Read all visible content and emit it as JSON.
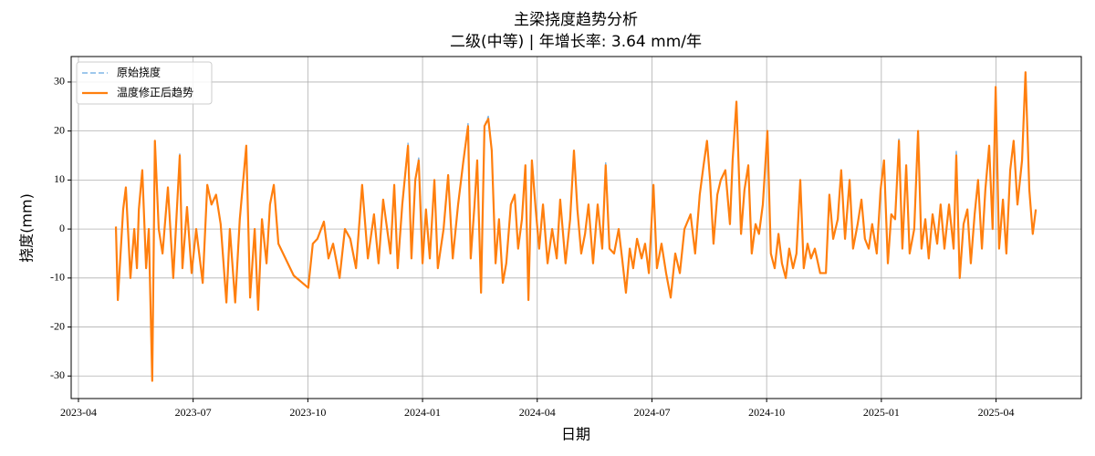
{
  "chart_data": {
    "type": "line",
    "title": "主梁挠度趋势分析",
    "subtitle": "二级(中等) | 年增长率: 3.64 mm/年",
    "xlabel": "日期",
    "ylabel": "挠度(mm)",
    "legend": "upper left",
    "grid": true,
    "xlim": [
      -0.19,
      26.23
    ],
    "xticks": [
      {
        "value": 0,
        "label": "2023-04"
      },
      {
        "value": 3,
        "label": "2023-07"
      },
      {
        "value": 6,
        "label": "2023-10"
      },
      {
        "value": 9,
        "label": "2024-01"
      },
      {
        "value": 12,
        "label": "2024-04"
      },
      {
        "value": 15,
        "label": "2024-07"
      },
      {
        "value": 18,
        "label": "2024-10"
      },
      {
        "value": 21,
        "label": "2025-01"
      },
      {
        "value": 24,
        "label": "2025-04"
      }
    ],
    "ylim": [
      -34.6,
      35.2
    ],
    "yticks": [
      -30,
      -20,
      -10,
      0,
      10,
      20,
      30
    ],
    "x": [
      0.98,
      1.03,
      1.17,
      1.24,
      1.36,
      1.46,
      1.53,
      1.58,
      1.67,
      1.77,
      1.84,
      1.93,
      2.0,
      2.1,
      2.2,
      2.34,
      2.48,
      2.65,
      2.72,
      2.84,
      2.96,
      3.08,
      3.25,
      3.37,
      3.48,
      3.6,
      3.72,
      3.87,
      3.96,
      4.1,
      4.22,
      4.39,
      4.49,
      4.61,
      4.7,
      4.8,
      4.92,
      5.01,
      5.11,
      5.23,
      5.63,
      6.01,
      6.13,
      6.25,
      6.42,
      6.54,
      6.66,
      6.83,
      6.97,
      7.11,
      7.26,
      7.42,
      7.57,
      7.73,
      7.85,
      7.97,
      8.16,
      8.26,
      8.35,
      8.47,
      8.62,
      8.71,
      8.81,
      8.9,
      9.0,
      9.09,
      9.19,
      9.31,
      9.4,
      9.55,
      9.67,
      9.79,
      9.93,
      10.07,
      10.19,
      10.26,
      10.36,
      10.43,
      10.53,
      10.62,
      10.72,
      10.81,
      10.91,
      11.0,
      11.1,
      11.19,
      11.31,
      11.41,
      11.5,
      11.6,
      11.69,
      11.77,
      11.86,
      11.96,
      12.05,
      12.15,
      12.27,
      12.39,
      12.51,
      12.6,
      12.74,
      12.86,
      12.96,
      13.05,
      13.15,
      13.25,
      13.34,
      13.46,
      13.58,
      13.7,
      13.79,
      13.89,
      14.01,
      14.13,
      14.22,
      14.32,
      14.42,
      14.51,
      14.61,
      14.73,
      14.82,
      14.92,
      15.04,
      15.13,
      15.25,
      15.37,
      15.49,
      15.61,
      15.73,
      15.85,
      16.01,
      16.13,
      16.25,
      16.35,
      16.44,
      16.52,
      16.61,
      16.71,
      16.8,
      16.92,
      17.04,
      17.11,
      17.21,
      17.33,
      17.42,
      17.52,
      17.61,
      17.71,
      17.8,
      17.9,
      18.02,
      18.11,
      18.21,
      18.31,
      18.4,
      18.5,
      18.59,
      18.69,
      18.78,
      18.88,
      18.97,
      19.07,
      19.16,
      19.26,
      19.4,
      19.55,
      19.64,
      19.74,
      19.86,
      19.95,
      20.05,
      20.17,
      20.26,
      20.38,
      20.48,
      20.57,
      20.67,
      20.76,
      20.88,
      20.98,
      21.07,
      21.17,
      21.26,
      21.36,
      21.46,
      21.55,
      21.65,
      21.74,
      21.86,
      21.96,
      22.05,
      22.15,
      22.24,
      22.34,
      22.46,
      22.55,
      22.65,
      22.77,
      22.89,
      22.96,
      23.05,
      23.15,
      23.25,
      23.34,
      23.44,
      23.53,
      23.63,
      23.72,
      23.82,
      23.91,
      23.99,
      24.08,
      24.18,
      24.27,
      24.37,
      24.46,
      24.56,
      24.68,
      24.77,
      24.87,
      24.96,
      25.04
    ],
    "series": [
      {
        "name": "原始挠度",
        "color": "#7eb6e6",
        "dashed": true,
        "values": [
          0.5,
          -14.5,
          4,
          8.5,
          -10,
          0,
          -8,
          4,
          12,
          -8,
          0,
          -31,
          18,
          0,
          -5,
          8.5,
          -10,
          15.3,
          -8,
          4.5,
          -9,
          0,
          -11,
          9,
          5,
          7,
          1,
          -15,
          0,
          -15,
          2,
          17,
          -14,
          0,
          -16.5,
          2,
          -7,
          5,
          9,
          -3,
          -9.5,
          -12,
          -3,
          -2,
          1.5,
          -6,
          -3,
          -10,
          0,
          -2,
          -8,
          9,
          -6,
          3,
          -7,
          6,
          -5,
          9,
          -8,
          5,
          17.5,
          -6,
          10,
          14.5,
          -7,
          4,
          -6,
          10,
          -8,
          0,
          11,
          -6,
          5,
          14,
          21.5,
          -6,
          5,
          14,
          -13,
          21,
          23,
          16,
          -7,
          2,
          -11,
          -7,
          5,
          7,
          -4,
          2,
          13,
          -14.5,
          14,
          4,
          -4,
          5,
          -7,
          0,
          -6,
          6,
          -7,
          2,
          16,
          4,
          -5,
          -1,
          5,
          -7,
          5,
          -4,
          13.5,
          -4,
          -5,
          0,
          -6,
          -13,
          -4,
          -8,
          -2,
          -6,
          -3,
          -9,
          9,
          -8,
          -3,
          -9,
          -14,
          -5,
          -9,
          0,
          3,
          -5,
          7,
          13,
          18,
          10,
          -3,
          7,
          10,
          12,
          1,
          14,
          26,
          -1,
          8,
          13,
          -5,
          1,
          -1,
          5,
          20,
          -5,
          -8,
          -1,
          -7,
          -10,
          -4,
          -8,
          -5,
          10,
          -8,
          -3,
          -6,
          -4,
          -9,
          -9,
          7,
          -2,
          2,
          12,
          -2,
          10,
          -4,
          1,
          6,
          -2,
          -4,
          1,
          -5,
          8,
          14,
          -7,
          3,
          2,
          18.5,
          -4,
          13,
          -5,
          0,
          20,
          -4,
          2,
          -6,
          3,
          -3,
          5,
          -4,
          5,
          -4,
          16,
          -10,
          1,
          4,
          -7,
          3,
          10,
          -4,
          8,
          17,
          0,
          29,
          -4,
          6,
          -5,
          12,
          18,
          5,
          14,
          32,
          8,
          -1,
          4
        ]
      },
      {
        "name": "温度修正后趋势",
        "color": "#ff7f0e",
        "dashed": false,
        "values": [
          0.5,
          -14.5,
          4,
          8.5,
          -10,
          0,
          -8,
          4,
          12,
          -8,
          0,
          -31,
          18,
          0,
          -5,
          8.5,
          -10,
          15,
          -8,
          4.5,
          -9,
          0,
          -11,
          9,
          5,
          7,
          1,
          -15,
          0,
          -15,
          2,
          17,
          -14,
          0,
          -16.5,
          2,
          -7,
          5,
          9,
          -3,
          -9.5,
          -12,
          -3,
          -2,
          1.5,
          -6,
          -3,
          -10,
          0,
          -2,
          -8,
          9,
          -6,
          3,
          -7,
          6,
          -5,
          9,
          -8,
          5,
          17,
          -6,
          10,
          14,
          -7,
          4,
          -6,
          10,
          -8,
          0,
          11,
          -6,
          5,
          14,
          21,
          -6,
          5,
          14,
          -13,
          21,
          22.5,
          16,
          -7,
          2,
          -11,
          -7,
          5,
          7,
          -4,
          2,
          13,
          -14.5,
          14,
          4,
          -4,
          5,
          -7,
          0,
          -6,
          6,
          -7,
          2,
          16,
          4,
          -5,
          -1,
          5,
          -7,
          5,
          -4,
          13,
          -4,
          -5,
          0,
          -6,
          -13,
          -4,
          -8,
          -2,
          -6,
          -3,
          -9,
          9,
          -8,
          -3,
          -9,
          -14,
          -5,
          -9,
          0,
          3,
          -5,
          7,
          13,
          18,
          10,
          -3,
          7,
          10,
          12,
          1,
          14,
          26,
          -1,
          8,
          13,
          -5,
          1,
          -1,
          5,
          20,
          -5,
          -8,
          -1,
          -7,
          -10,
          -4,
          -8,
          -5,
          10,
          -8,
          -3,
          -6,
          -4,
          -9,
          -9,
          7,
          -2,
          2,
          12,
          -2,
          10,
          -4,
          1,
          6,
          -2,
          -4,
          1,
          -5,
          8,
          14,
          -7,
          3,
          2,
          18,
          -4,
          13,
          -5,
          0,
          20,
          -4,
          2,
          -6,
          3,
          -3,
          5,
          -4,
          5,
          -4,
          15,
          -10,
          1,
          4,
          -7,
          3,
          10,
          -4,
          8,
          17,
          0,
          29,
          -4,
          6,
          -5,
          12,
          18,
          5,
          14,
          32,
          8,
          -1,
          4
        ]
      }
    ]
  }
}
